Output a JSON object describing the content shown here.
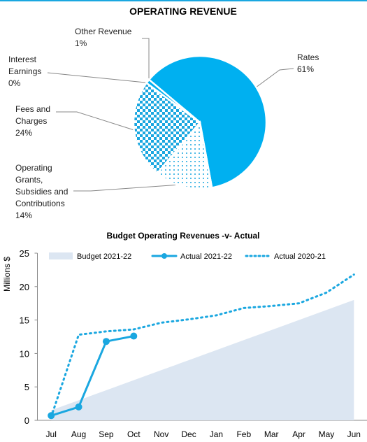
{
  "chart_data": [
    {
      "type": "pie",
      "title": "OPERATING REVENUE",
      "categories": [
        "Rates",
        "Operating Grants, Subsidies and Contributions",
        "Fees and Charges",
        "Interest Earnings",
        "Other Revenue"
      ],
      "values": [
        61,
        14,
        24,
        0,
        1
      ],
      "value_labels": [
        "61%",
        "14%",
        "24%",
        "0%",
        "1%"
      ],
      "color": "#00b0f0"
    },
    {
      "type": "line",
      "title": "Budget Operating Revenues -v- Actual",
      "y_label": "Millions $",
      "categories": [
        "Jul",
        "Aug",
        "Sep",
        "Oct",
        "Nov",
        "Dec",
        "Jan",
        "Feb",
        "Mar",
        "Apr",
        "May",
        "Jun"
      ],
      "series": [
        {
          "name": "Budget 2021-22",
          "kind": "area",
          "color": "#dce6f2",
          "values": [
            1.5,
            3,
            4.5,
            6,
            7.5,
            9,
            10.5,
            12,
            13.5,
            15,
            16.5,
            18
          ]
        },
        {
          "name": "Actual 2021-22",
          "kind": "solid",
          "color": "#1aa7e0",
          "values": [
            0.7,
            2.0,
            11.8,
            12.6,
            null,
            null,
            null,
            null,
            null,
            null,
            null,
            null
          ]
        },
        {
          "name": "Actual 2020-21",
          "kind": "dotted",
          "color": "#1aa7e0",
          "values": [
            0.5,
            12.8,
            13.3,
            13.6,
            14.6,
            15.1,
            15.7,
            16.8,
            17.1,
            17.5,
            19.1,
            21.8
          ]
        }
      ],
      "ylim": [
        0,
        25
      ],
      "yticks": [
        0,
        5,
        10,
        15,
        20,
        25
      ],
      "legend": "top"
    }
  ]
}
